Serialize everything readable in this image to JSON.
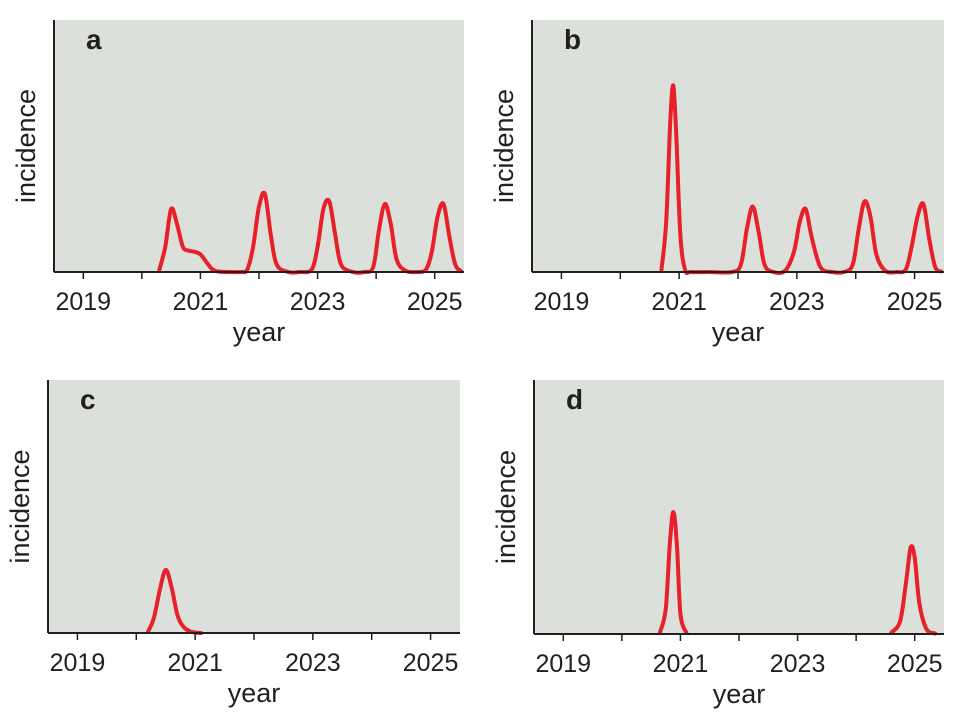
{
  "chart_data": [
    {
      "type": "line",
      "panel": "a",
      "xlabel": "year",
      "ylabel": "incidence",
      "xlim": [
        2018.5,
        2025.5
      ],
      "xticks": [
        2019,
        2020,
        2021,
        2022,
        2023,
        2024,
        2025
      ],
      "xtick_labels": [
        "2019",
        "",
        "2021",
        "",
        "2023",
        "",
        "2025"
      ],
      "ylim": [
        0,
        1
      ],
      "grid": false,
      "line_color": "#e8202a",
      "series": [
        {
          "x": [
            2020.3,
            2020.4,
            2020.5,
            2020.6,
            2020.7,
            2020.8,
            2020.9,
            2021.0,
            2021.1,
            2021.2,
            2021.3,
            2021.5,
            2021.7,
            2021.8,
            2021.9,
            2022.0,
            2022.1,
            2022.2,
            2022.3,
            2022.5,
            2022.7,
            2022.9,
            2023.0,
            2023.1,
            2023.2,
            2023.3,
            2023.4,
            2023.6,
            2023.8,
            2023.95,
            2024.05,
            2024.15,
            2024.25,
            2024.35,
            2024.5,
            2024.7,
            2024.85,
            2024.95,
            2025.05,
            2025.15,
            2025.25,
            2025.35,
            2025.45
          ],
          "y": [
            0.01,
            0.1,
            0.25,
            0.19,
            0.1,
            0.085,
            0.08,
            0.07,
            0.04,
            0.012,
            0.002,
            0,
            0,
            0.01,
            0.1,
            0.26,
            0.31,
            0.15,
            0.03,
            0,
            0,
            0.01,
            0.1,
            0.25,
            0.28,
            0.15,
            0.03,
            0,
            0,
            0.02,
            0.17,
            0.27,
            0.19,
            0.05,
            0.005,
            0,
            0.01,
            0.08,
            0.22,
            0.27,
            0.14,
            0.03,
            0.003
          ]
        }
      ]
    },
    {
      "type": "line",
      "panel": "b",
      "xlabel": "year",
      "ylabel": "incidence",
      "xlim": [
        2018.5,
        2025.5
      ],
      "xticks": [
        2019,
        2020,
        2021,
        2022,
        2023,
        2024,
        2025
      ],
      "xtick_labels": [
        "2019",
        "",
        "2021",
        "",
        "2023",
        "",
        "2025"
      ],
      "ylim": [
        0,
        1
      ],
      "grid": false,
      "line_color": "#e8202a",
      "series": [
        {
          "x": [
            2020.7,
            2020.78,
            2020.85,
            2020.9,
            2020.95,
            2021.02,
            2021.1,
            2021.2,
            2021.5,
            2021.9,
            2022.05,
            2022.15,
            2022.25,
            2022.35,
            2022.45,
            2022.6,
            2022.8,
            2022.95,
            2023.05,
            2023.15,
            2023.25,
            2023.4,
            2023.6,
            2023.8,
            2023.95,
            2024.05,
            2024.15,
            2024.25,
            2024.35,
            2024.5,
            2024.7,
            2024.85,
            2024.95,
            2025.05,
            2025.15,
            2025.25,
            2025.35,
            2025.45
          ],
          "y": [
            0.01,
            0.2,
            0.6,
            0.74,
            0.55,
            0.15,
            0.01,
            0,
            0,
            0,
            0.03,
            0.17,
            0.26,
            0.16,
            0.03,
            0,
            0.005,
            0.08,
            0.2,
            0.25,
            0.14,
            0.02,
            0,
            0,
            0.03,
            0.17,
            0.28,
            0.22,
            0.07,
            0.005,
            0,
            0.01,
            0.1,
            0.22,
            0.27,
            0.13,
            0.02,
            0.002
          ]
        }
      ]
    },
    {
      "type": "line",
      "panel": "c",
      "xlabel": "year",
      "ylabel": "incidence",
      "xlim": [
        2018.5,
        2025.5
      ],
      "xticks": [
        2019,
        2020,
        2021,
        2022,
        2023,
        2024,
        2025
      ],
      "xtick_labels": [
        "2019",
        "",
        "2021",
        "",
        "2023",
        "",
        "2025"
      ],
      "ylim": [
        0,
        1
      ],
      "grid": false,
      "line_color": "#e8202a",
      "series": [
        {
          "x": [
            2020.2,
            2020.3,
            2020.4,
            2020.5,
            2020.6,
            2020.7,
            2020.8,
            2020.9,
            2021.0,
            2021.1
          ],
          "y": [
            0.005,
            0.06,
            0.17,
            0.25,
            0.18,
            0.07,
            0.025,
            0.008,
            0.002,
            0
          ]
        }
      ]
    },
    {
      "type": "line",
      "panel": "d",
      "xlabel": "year",
      "ylabel": "incidence",
      "xlim": [
        2018.5,
        2025.5
      ],
      "xticks": [
        2019,
        2020,
        2021,
        2022,
        2023,
        2024,
        2025
      ],
      "xtick_labels": [
        "2019",
        "",
        "2021",
        "",
        "2023",
        "",
        "2025"
      ],
      "ylim": [
        0,
        1
      ],
      "grid": false,
      "line_color": "#e8202a",
      "series": [
        {
          "x": [
            2020.65,
            2020.75,
            2020.82,
            2020.88,
            2020.94,
            2021.0,
            2021.1
          ],
          "y": [
            0.005,
            0.1,
            0.36,
            0.48,
            0.35,
            0.08,
            0.005
          ]
        },
        {
          "x": [
            2024.6,
            2024.75,
            2024.85,
            2024.93,
            2025.0,
            2025.08,
            2025.2,
            2025.35
          ],
          "y": [
            0.005,
            0.05,
            0.2,
            0.34,
            0.3,
            0.12,
            0.02,
            0.002
          ]
        }
      ]
    }
  ]
}
